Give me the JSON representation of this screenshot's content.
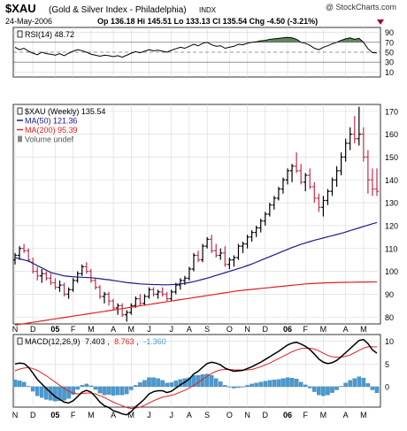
{
  "header": {
    "symbol": "$XAU",
    "description": "(Gold & Silver Index - Philadelphia)",
    "exchange": "INDX",
    "watermark": "@ StockCharts.com",
    "date": "24-May-2006",
    "quote": "Op 136.18  Hi 145.51  Lo 133.13  Cl 135.54  Chg -4.50 (-3.21%)",
    "chg_arrow": "down"
  },
  "rsi_panel": {
    "label": "RSI(14) 48.72",
    "ticks": [
      "90",
      "70",
      "50",
      "30",
      "10"
    ]
  },
  "price_panel": {
    "legend": [
      {
        "text": "$XAU (Weekly) 135.54",
        "color": "#000000"
      },
      {
        "text": "MA(50) 121.36",
        "color": "#1a1a8c"
      },
      {
        "text": "MA(200) 95.39",
        "color": "#e02020"
      },
      {
        "text": "Volume undef",
        "color": "#555555"
      }
    ],
    "ticks": [
      "170",
      "160",
      "150",
      "140",
      "130",
      "120",
      "110",
      "100",
      "90",
      "80"
    ]
  },
  "x_axis": {
    "labels_top": [
      "N",
      "D",
      "05",
      "F",
      "M",
      "A",
      "M",
      "J",
      "J",
      "A",
      "S",
      "O",
      "N",
      "D",
      "06",
      "F",
      "M",
      "A",
      "M"
    ],
    "labels_bottom": [
      "N",
      "D",
      "05",
      "F",
      "M",
      "A",
      "M",
      "J",
      "J",
      "A",
      "S",
      "O",
      "N",
      "D",
      "06",
      "F",
      "M",
      "A",
      "M"
    ]
  },
  "macd_panel": {
    "label_prefix": "MACD(12,26,9)",
    "macd_value": "7.403",
    "signal_value": "8.763",
    "hist_value": "-1.360",
    "ticks": [
      "10",
      "5",
      "0"
    ]
  },
  "colors": {
    "price_bar": "#000000",
    "down_bar": "#c0304a",
    "ma50": "#1a1a8c",
    "ma200": "#e02020",
    "rsi_line": "#000000",
    "rsi_fill": "#4f7a4f",
    "macd_line": "#000000",
    "signal_line": "#e02020",
    "histogram": "#4a9ad0",
    "down_arrow": "#a0002a"
  },
  "chart_data": {
    "type": "line",
    "title": "$XAU (Gold & Silver Index - Philadelphia) INDX",
    "x": [
      "2004-11-05",
      "2004-11-12",
      "2004-11-19",
      "2004-11-26",
      "2004-12-03",
      "2004-12-10",
      "2004-12-17",
      "2004-12-24",
      "2004-12-31",
      "2005-01-07",
      "2005-01-14",
      "2005-01-21",
      "2005-01-28",
      "2005-02-04",
      "2005-02-11",
      "2005-02-18",
      "2005-02-25",
      "2005-03-04",
      "2005-03-11",
      "2005-03-18",
      "2005-03-25",
      "2005-04-01",
      "2005-04-08",
      "2005-04-15",
      "2005-04-22",
      "2005-04-29",
      "2005-05-06",
      "2005-05-13",
      "2005-05-20",
      "2005-05-27",
      "2005-06-03",
      "2005-06-10",
      "2005-06-17",
      "2005-06-24",
      "2005-07-01",
      "2005-07-08",
      "2005-07-15",
      "2005-07-22",
      "2005-07-29",
      "2005-08-05",
      "2005-08-12",
      "2005-08-19",
      "2005-08-26",
      "2005-09-02",
      "2005-09-09",
      "2005-09-16",
      "2005-09-23",
      "2005-09-30",
      "2005-10-07",
      "2005-10-14",
      "2005-10-21",
      "2005-10-28",
      "2005-11-04",
      "2005-11-11",
      "2005-11-18",
      "2005-11-25",
      "2005-12-02",
      "2005-12-09",
      "2005-12-16",
      "2005-12-23",
      "2005-12-30",
      "2006-01-06",
      "2006-01-13",
      "2006-01-20",
      "2006-01-27",
      "2006-02-03",
      "2006-02-10",
      "2006-02-17",
      "2006-02-24",
      "2006-03-03",
      "2006-03-10",
      "2006-03-17",
      "2006-03-24",
      "2006-03-31",
      "2006-04-07",
      "2006-04-14",
      "2006-04-21",
      "2006-04-28",
      "2006-05-05",
      "2006-05-12",
      "2006-05-19",
      "2006-05-24"
    ],
    "series": [
      {
        "name": "$XAU",
        "type": "ohlc",
        "values": [
          [
            105,
            108,
            103,
            107
          ],
          [
            107,
            111,
            105,
            110
          ],
          [
            110,
            112,
            108,
            109
          ],
          [
            109,
            110,
            104,
            105
          ],
          [
            104,
            106,
            99,
            100
          ],
          [
            100,
            102,
            96,
            98
          ],
          [
            98,
            101,
            95,
            99
          ],
          [
            99,
            100,
            96,
            97
          ],
          [
            97,
            99,
            94,
            95
          ],
          [
            95,
            97,
            92,
            93
          ],
          [
            93,
            96,
            91,
            94
          ],
          [
            94,
            95,
            89,
            90
          ],
          [
            90,
            93,
            88,
            92
          ],
          [
            92,
            97,
            91,
            96
          ],
          [
            96,
            100,
            95,
            99
          ],
          [
            99,
            103,
            98,
            102
          ],
          [
            102,
            104,
            99,
            100
          ],
          [
            100,
            101,
            95,
            96
          ],
          [
            96,
            97,
            92,
            93
          ],
          [
            93,
            94,
            88,
            89
          ],
          [
            89,
            91,
            86,
            90
          ],
          [
            90,
            91,
            85,
            87
          ],
          [
            87,
            88,
            83,
            84
          ],
          [
            84,
            86,
            81,
            85
          ],
          [
            85,
            86,
            80,
            81
          ],
          [
            81,
            83,
            78,
            82
          ],
          [
            82,
            86,
            81,
            85
          ],
          [
            85,
            89,
            84,
            88
          ],
          [
            88,
            90,
            85,
            86
          ],
          [
            86,
            90,
            85,
            89
          ],
          [
            89,
            93,
            88,
            92
          ],
          [
            92,
            93,
            89,
            90
          ],
          [
            90,
            92,
            88,
            91
          ],
          [
            91,
            93,
            89,
            90
          ],
          [
            90,
            91,
            87,
            88
          ],
          [
            88,
            92,
            87,
            91
          ],
          [
            91,
            95,
            90,
            94
          ],
          [
            94,
            97,
            92,
            96
          ],
          [
            96,
            98,
            94,
            97
          ],
          [
            97,
            102,
            96,
            101
          ],
          [
            101,
            108,
            100,
            107
          ],
          [
            107,
            109,
            104,
            105
          ],
          [
            105,
            112,
            104,
            111
          ],
          [
            111,
            115,
            110,
            114
          ],
          [
            114,
            116,
            108,
            109
          ],
          [
            109,
            112,
            106,
            107
          ],
          [
            107,
            110,
            105,
            108
          ],
          [
            108,
            111,
            102,
            103
          ],
          [
            103,
            106,
            101,
            105
          ],
          [
            105,
            107,
            102,
            106
          ],
          [
            106,
            112,
            105,
            111
          ],
          [
            111,
            113,
            108,
            112
          ],
          [
            112,
            116,
            110,
            115
          ],
          [
            115,
            118,
            113,
            117
          ],
          [
            117,
            120,
            115,
            119
          ],
          [
            119,
            123,
            117,
            122
          ],
          [
            122,
            126,
            120,
            125
          ],
          [
            125,
            130,
            124,
            129
          ],
          [
            129,
            133,
            127,
            132
          ],
          [
            132,
            137,
            131,
            136
          ],
          [
            136,
            141,
            134,
            140
          ],
          [
            140,
            145,
            138,
            144
          ],
          [
            144,
            147,
            139,
            146
          ],
          [
            146,
            152,
            143,
            144
          ],
          [
            144,
            147,
            138,
            139
          ],
          [
            139,
            143,
            135,
            142
          ],
          [
            142,
            145,
            136,
            137
          ],
          [
            137,
            139,
            130,
            132
          ],
          [
            132,
            134,
            126,
            128
          ],
          [
            128,
            133,
            124,
            131
          ],
          [
            131,
            136,
            129,
            135
          ],
          [
            135,
            141,
            133,
            140
          ],
          [
            140,
            146,
            137,
            144
          ],
          [
            144,
            152,
            142,
            150
          ],
          [
            150,
            158,
            148,
            156
          ],
          [
            156,
            163,
            153,
            160
          ],
          [
            160,
            168,
            156,
            158
          ],
          [
            158,
            172,
            155,
            160
          ],
          [
            160,
            163,
            148,
            150
          ],
          [
            150,
            153,
            134,
            140
          ],
          [
            140,
            145,
            133,
            136
          ],
          [
            136,
            145,
            133,
            135
          ]
        ]
      },
      {
        "name": "MA(50)",
        "values": [
          106,
          105.5,
          105,
          104.5,
          103.5,
          102.5,
          101.5,
          100.5,
          99.5,
          99,
          98.5,
          98,
          97.8,
          97.6,
          97.5,
          97.4,
          97.3,
          97.2,
          97,
          96.8,
          96.5,
          96.3,
          96,
          95.7,
          95.4,
          95.1,
          94.9,
          94.7,
          94.5,
          94.4,
          94.3,
          94.2,
          94.2,
          94.1,
          94.1,
          94.2,
          94.3,
          94.5,
          94.8,
          95.1,
          95.5,
          96,
          96.5,
          97,
          97.6,
          98.2,
          98.8,
          99.4,
          100,
          100.6,
          101.2,
          101.8,
          102.5,
          103.2,
          104,
          104.8,
          105.6,
          106.4,
          107.2,
          108,
          108.8,
          109.6,
          110.4,
          111.1,
          111.8,
          112.4,
          113,
          113.6,
          114.1,
          114.6,
          115.1,
          115.6,
          116.1,
          116.6,
          117.2,
          117.8,
          118.4,
          119,
          119.6,
          120.2,
          120.8,
          121.36
        ]
      },
      {
        "name": "MA(200)",
        "values": [
          76.5,
          76.8,
          77.1,
          77.4,
          77.7,
          78,
          78.3,
          78.6,
          78.9,
          79.2,
          79.5,
          79.8,
          80.1,
          80.4,
          80.7,
          81,
          81.3,
          81.6,
          81.9,
          82.2,
          82.5,
          82.8,
          83.1,
          83.4,
          83.7,
          84,
          84.3,
          84.6,
          84.9,
          85.2,
          85.5,
          85.8,
          86.1,
          86.4,
          86.7,
          87,
          87.3,
          87.6,
          87.9,
          88.2,
          88.5,
          88.8,
          89.1,
          89.4,
          89.7,
          90,
          90.3,
          90.6,
          90.9,
          91.2,
          91.5,
          91.7,
          91.9,
          92.1,
          92.3,
          92.5,
          92.7,
          92.9,
          93.1,
          93.3,
          93.5,
          93.7,
          93.9,
          94.1,
          94.3,
          94.5,
          94.6,
          94.7,
          94.8,
          94.9,
          95,
          95.05,
          95.1,
          95.15,
          95.2,
          95.22,
          95.25,
          95.28,
          95.3,
          95.33,
          95.36,
          95.39
        ]
      },
      {
        "name": "RSI(14)",
        "values": [
          60,
          55,
          58,
          52,
          48,
          45,
          50,
          47,
          46,
          44,
          47,
          43,
          48,
          52,
          55,
          53,
          50,
          46,
          44,
          42,
          44,
          43,
          41,
          43,
          40,
          44,
          48,
          51,
          49,
          52,
          55,
          53,
          54,
          52,
          50,
          54,
          57,
          60,
          58,
          62,
          66,
          63,
          68,
          70,
          65,
          62,
          63,
          58,
          60,
          62,
          66,
          65,
          68,
          70,
          71,
          73,
          74,
          76,
          77,
          78,
          79,
          80,
          79,
          76,
          70,
          68,
          64,
          58,
          55,
          60,
          63,
          67,
          70,
          74,
          77,
          79,
          76,
          78,
          70,
          57,
          49,
          48.72
        ]
      },
      {
        "name": "MACD(12,26,9)",
        "values": [
          5,
          5.2,
          5.1,
          4.3,
          3,
          1.6,
          0.6,
          -0.4,
          -1.3,
          -2.2,
          -2.8,
          -3.4,
          -3.6,
          -3.1,
          -2.2,
          -1.2,
          -0.8,
          -1.2,
          -2.2,
          -3.4,
          -4.2,
          -4.6,
          -5.3,
          -5.6,
          -6,
          -6.2,
          -5.5,
          -4.4,
          -3.6,
          -2.7,
          -1.6,
          -1.1,
          -0.9,
          -0.9,
          -1.3,
          -1.0,
          -0.3,
          0.4,
          1.0,
          1.7,
          2.8,
          3.4,
          4.3,
          5.1,
          5.4,
          5.2,
          4.8,
          4.1,
          3.7,
          3.4,
          3.5,
          3.6,
          4.0,
          4.4,
          4.9,
          5.4,
          6.0,
          6.6,
          7.2,
          7.8,
          8.5,
          9.2,
          9.6,
          9.8,
          9.4,
          8.9,
          8.2,
          7.2,
          6.1,
          5.4,
          5.1,
          5.3,
          5.8,
          6.6,
          7.5,
          8.4,
          9.3,
          10.2,
          10.4,
          9.5,
          8.1,
          7.403
        ]
      },
      {
        "name": "Signal",
        "values": [
          3.5,
          3.9,
          4.1,
          4.2,
          4,
          3.6,
          3,
          2.4,
          1.7,
          1,
          0.3,
          -0.4,
          -1,
          -1.4,
          -1.6,
          -1.5,
          -1.4,
          -1.4,
          -1.6,
          -2,
          -2.4,
          -2.9,
          -3.4,
          -3.8,
          -4.2,
          -4.6,
          -4.8,
          -4.7,
          -4.5,
          -4.1,
          -3.6,
          -3.1,
          -2.7,
          -2.3,
          -2.1,
          -1.9,
          -1.6,
          -1.2,
          -0.8,
          -0.3,
          0.3,
          0.9,
          1.6,
          2.3,
          2.9,
          3.4,
          3.7,
          3.8,
          3.8,
          3.7,
          3.7,
          3.7,
          3.7,
          3.8,
          4.1,
          4.4,
          4.8,
          5.2,
          5.7,
          6.2,
          6.7,
          7.2,
          7.7,
          8.1,
          8.4,
          8.5,
          8.5,
          8.3,
          7.9,
          7.4,
          6.9,
          6.6,
          6.5,
          6.5,
          6.7,
          7,
          7.5,
          8,
          8.5,
          8.8,
          8.8,
          8.763
        ]
      }
    ],
    "y_ranges": {
      "price": [
        77,
        173
      ],
      "rsi": [
        0,
        100
      ],
      "macd": [
        -4.5,
        11.5
      ]
    },
    "grid": true
  }
}
